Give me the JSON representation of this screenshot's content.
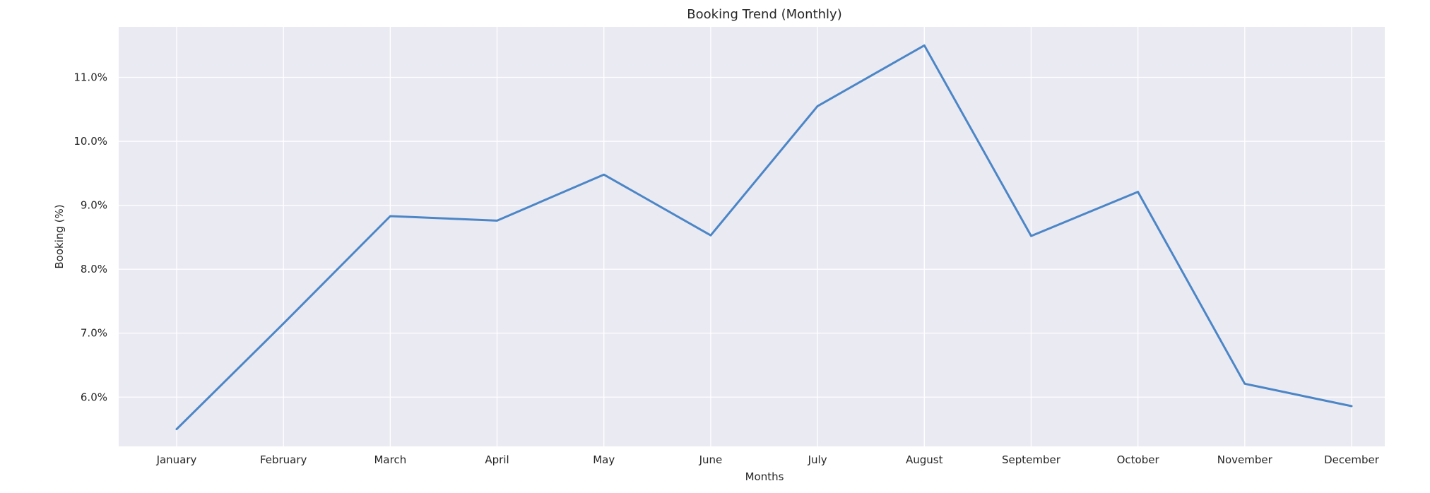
{
  "chart_data": {
    "type": "line",
    "title": "Booking Trend (Monthly)",
    "xlabel": "Months",
    "ylabel": "Booking (%)",
    "categories": [
      "January",
      "February",
      "March",
      "April",
      "May",
      "June",
      "July",
      "August",
      "September",
      "October",
      "November",
      "December"
    ],
    "series": [
      {
        "values": [
          5.5,
          7.15,
          8.83,
          8.76,
          9.48,
          8.53,
          10.55,
          11.5,
          8.52,
          9.21,
          6.21,
          5.86
        ]
      }
    ],
    "yticks": [
      6.0,
      7.0,
      8.0,
      9.0,
      10.0,
      11.0
    ],
    "ytick_labels": [
      "6.0%",
      "7.0%",
      "8.0%",
      "9.0%",
      "10.0%",
      "11.0%"
    ],
    "ylim": [
      5.23,
      11.79
    ],
    "grid": true,
    "colors": {
      "line": "#4c86c6",
      "background": "#eaeaf2",
      "grid": "#ffffff"
    }
  }
}
